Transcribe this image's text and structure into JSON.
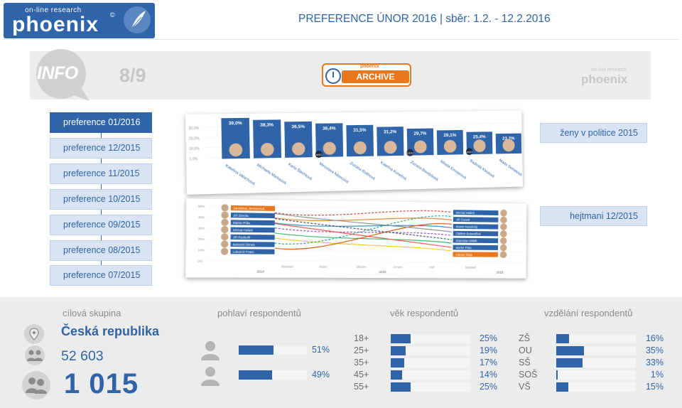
{
  "header": {
    "logo_top": "on-line research",
    "logo_word": "phoenix",
    "logo_copy": "©",
    "title": "PREFERENCE ÚNOR 2016 | sběr: 1.2. - 12.2.2016"
  },
  "info": {
    "label": "INFO",
    "page": "8/9",
    "archive_brand": "phoenix",
    "archive_label": "ARCHIVE",
    "small_logo_top": "on-line research",
    "small_logo_word": "phoenix"
  },
  "preferences": [
    {
      "label": "preference 01/2016",
      "active": true
    },
    {
      "label": "preference 12/2015",
      "active": false
    },
    {
      "label": "preference 11/2015",
      "active": false
    },
    {
      "label": "preference 10/2015",
      "active": false
    },
    {
      "label": "preference 09/2015",
      "active": false
    },
    {
      "label": "preference 08/2015",
      "active": false
    },
    {
      "label": "preference 07/2015",
      "active": false
    }
  ],
  "thumb1": {
    "tag": "ženy v politice 2015",
    "yticks": [
      "30,0%",
      "20,0%",
      "10,0%",
      "0,0%"
    ],
    "bars": [
      {
        "value": "39,0%",
        "name": "Kateřina Valachová"
      },
      {
        "value": "38,3%",
        "name": "Michaela Marksová"
      },
      {
        "value": "36,5%",
        "name": "Karla Šlechtová"
      },
      {
        "value": "36,4%",
        "name": "Miroslava Němcová"
      },
      {
        "value": "31,5%",
        "name": "Zuzana Roithová"
      },
      {
        "value": "31,2%",
        "name": "Kateřina Konečná"
      },
      {
        "value": "29,7%",
        "name": "Zuzana Baudyšová"
      },
      {
        "value": "29,1%",
        "name": "Milada Emmerová"
      },
      {
        "value": "25,4%",
        "name": "Radmila Kleslová"
      },
      {
        "value": "23,2%",
        "name": "Marta Semelová"
      }
    ],
    "badges": [
      "ANO",
      "ODS",
      "ANO"
    ]
  },
  "thumb2": {
    "tag": "hejtmani 12/2015",
    "yticks": [
      "50%",
      "40%",
      "30%",
      "20%",
      "10%",
      "0%"
    ],
    "xlabels": [
      "listopad",
      "leden",
      "březen",
      "červen",
      "září",
      "listopad"
    ],
    "years": [
      "2014",
      "2015",
      "2016"
    ],
    "left_names": [
      "Jaroslava Jermanová",
      "Jiří Zimola",
      "Martin Půta",
      "Michal Hašek",
      "Jiří Rozbořil",
      "Bohumil Šimek",
      "Lubomír Franc"
    ],
    "right_names": [
      "Michal Hašek",
      "Jiří Čunek",
      "Martin Netolický",
      "Oldřich Bubeníček",
      "Stanislav Mišák",
      "Martin Půta",
      "Václav Šlajs"
    ]
  },
  "bottom": {
    "target": {
      "title": "cílová skupina",
      "country": "Česká republika",
      "population": "52 603",
      "sample": "1 015"
    },
    "gender": {
      "title": "pohlaví respondentů",
      "rows": [
        {
          "icon": "male-icon",
          "value": 51,
          "label": "51%"
        },
        {
          "icon": "female-icon",
          "value": 49,
          "label": "49%"
        }
      ]
    },
    "age": {
      "title": "věk respondentů",
      "rows": [
        {
          "label": "18+",
          "value": 25,
          "pct": "25%"
        },
        {
          "label": "25+",
          "value": 19,
          "pct": "19%"
        },
        {
          "label": "35+",
          "value": 17,
          "pct": "17%"
        },
        {
          "label": "45+",
          "value": 14,
          "pct": "14%"
        },
        {
          "label": "55+",
          "value": 25,
          "pct": "25%"
        }
      ]
    },
    "education": {
      "title": "vzdělání respondentů",
      "rows": [
        {
          "label": "ZŠ",
          "value": 16,
          "pct": "16%"
        },
        {
          "label": "OU",
          "value": 35,
          "pct": "35%"
        },
        {
          "label": "SŠ",
          "value": 33,
          "pct": "33%"
        },
        {
          "label": "SOŠ",
          "value": 1,
          "pct": "1%"
        },
        {
          "label": "VŠ",
          "value": 15,
          "pct": "15%"
        }
      ]
    }
  },
  "colors": {
    "brand": "#2f64a8",
    "archive_orange": "#e8771e",
    "tab_bg": "#d8e3f3",
    "bottom_bg": "#ececec"
  }
}
